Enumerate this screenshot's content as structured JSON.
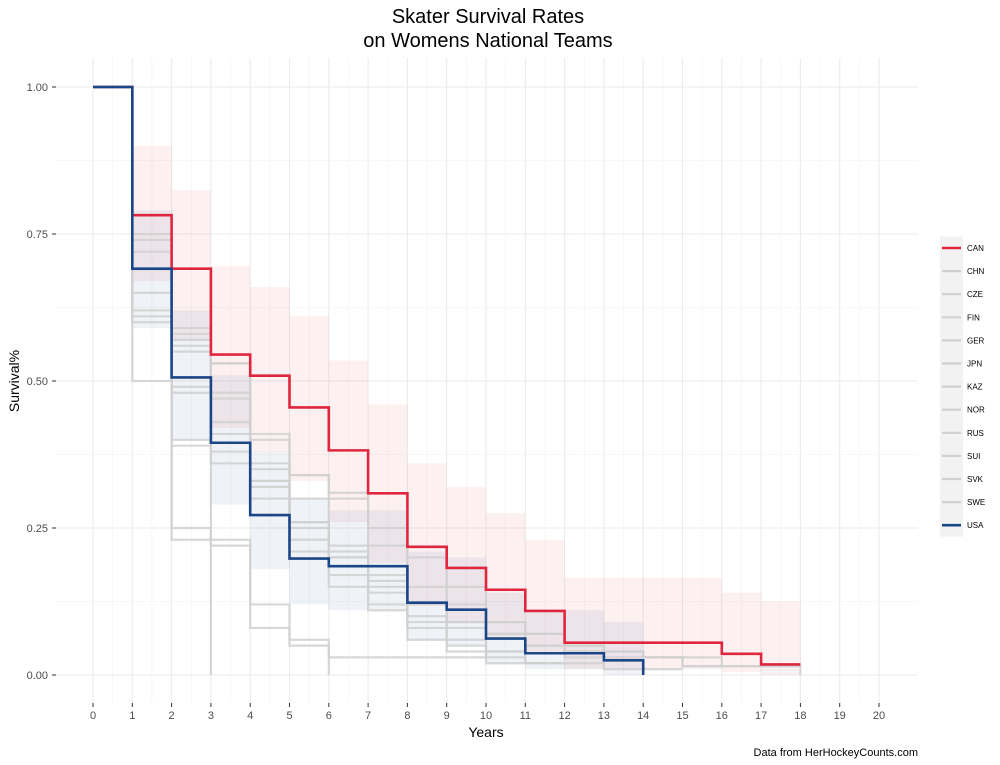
{
  "chart_data": {
    "type": "line",
    "subtype": "step",
    "title_line1": "Skater Survival Rates",
    "title_line2": "on Womens National Teams",
    "xlabel": "Years",
    "ylabel": "Survival%",
    "caption": "Data from HerHockeyCounts.com",
    "xlim": [
      0,
      20
    ],
    "ylim": [
      0,
      1
    ],
    "x_ticks": [
      0,
      1,
      2,
      3,
      4,
      5,
      6,
      7,
      8,
      9,
      10,
      11,
      12,
      13,
      14,
      15,
      16,
      17,
      18,
      19,
      20
    ],
    "y_ticks": [
      0,
      0.25,
      0.5,
      0.75,
      1.0
    ],
    "y_tick_labels": [
      "0.00",
      "0.25",
      "0.50",
      "0.75",
      "1.00"
    ],
    "grid": true,
    "background": "#ffffff",
    "grid_color": "#ebebeb",
    "legend_position": "right",
    "series": [
      {
        "name": "CAN",
        "color": "#e0263f",
        "highlight": true,
        "x": [
          0,
          1,
          2,
          3,
          4,
          5,
          6,
          7,
          8,
          9,
          10,
          11,
          12,
          13,
          14,
          15,
          16,
          17,
          18
        ],
        "y": [
          1.0,
          0.782,
          0.691,
          0.545,
          0.509,
          0.455,
          0.382,
          0.309,
          0.218,
          0.182,
          0.145,
          0.109,
          0.055,
          0.055,
          0.055,
          0.055,
          0.036,
          0.018,
          0.018
        ],
        "lower": [
          1.0,
          0.67,
          0.57,
          0.42,
          0.38,
          0.33,
          0.26,
          0.19,
          0.12,
          0.09,
          0.06,
          0.04,
          0.01,
          0.01,
          0.01,
          0.01,
          0.005,
          0.0,
          0.0
        ],
        "upper": [
          1.0,
          0.9,
          0.825,
          0.695,
          0.66,
          0.61,
          0.535,
          0.46,
          0.36,
          0.32,
          0.275,
          0.23,
          0.165,
          0.165,
          0.165,
          0.165,
          0.14,
          0.125,
          0.125
        ]
      },
      {
        "name": "CHN",
        "color": "#d0d0d0",
        "highlight": false,
        "x": [
          0,
          1,
          2,
          3,
          4,
          5,
          6,
          7,
          8,
          9,
          10
        ],
        "y": [
          1.0,
          0.61,
          0.4,
          0.23,
          0.12,
          0.06,
          0.03,
          0.03,
          0.03,
          0.03,
          0.03
        ]
      },
      {
        "name": "CZE",
        "color": "#d0d0d0",
        "highlight": false,
        "x": [
          0,
          1,
          2,
          3,
          4,
          5,
          6,
          7,
          8,
          9,
          10,
          11,
          12
        ],
        "y": [
          1.0,
          0.62,
          0.48,
          0.38,
          0.33,
          0.26,
          0.2,
          0.14,
          0.09,
          0.06,
          0.04,
          0.02,
          0.02
        ]
      },
      {
        "name": "FIN",
        "color": "#d0d0d0",
        "highlight": false,
        "x": [
          0,
          1,
          2,
          3,
          4,
          5,
          6,
          7,
          8,
          9,
          10,
          11,
          12,
          13,
          14,
          15,
          16,
          17,
          18
        ],
        "y": [
          1.0,
          0.75,
          0.59,
          0.53,
          0.41,
          0.34,
          0.31,
          0.25,
          0.2,
          0.15,
          0.09,
          0.07,
          0.05,
          0.04,
          0.03,
          0.03,
          0.015,
          0.015,
          0.015
        ]
      },
      {
        "name": "GER",
        "color": "#d0d0d0",
        "highlight": false,
        "x": [
          0,
          1,
          2,
          3,
          4,
          5,
          6,
          7,
          8,
          9,
          10,
          11,
          12
        ],
        "y": [
          1.0,
          0.65,
          0.49,
          0.41,
          0.35,
          0.25,
          0.22,
          0.17,
          0.1,
          0.08,
          0.04,
          0.02,
          0.02
        ]
      },
      {
        "name": "JPN",
        "color": "#d0d0d0",
        "highlight": false,
        "x": [
          0,
          1,
          2,
          3,
          4,
          5,
          6
        ],
        "y": [
          1.0,
          0.5,
          0.25,
          0.22,
          0.08,
          0.05,
          0.0
        ]
      },
      {
        "name": "KAZ",
        "color": "#d0d0d0",
        "highlight": false,
        "x": [
          0,
          1,
          2,
          3
        ],
        "y": [
          1.0,
          0.69,
          0.23,
          0.0
        ]
      },
      {
        "name": "NOR",
        "color": "#d0d0d0",
        "highlight": false,
        "x": [
          0,
          1,
          2,
          3,
          4,
          5,
          6,
          7,
          8,
          9,
          10,
          11
        ],
        "y": [
          1.0,
          0.6,
          0.39,
          0.36,
          0.3,
          0.21,
          0.17,
          0.12,
          0.08,
          0.05,
          0.03,
          0.03
        ]
      },
      {
        "name": "RUS",
        "color": "#d0d0d0",
        "highlight": false,
        "x": [
          0,
          1,
          2,
          3,
          4,
          5,
          6,
          7,
          8,
          9,
          10,
          11,
          12,
          13
        ],
        "y": [
          1.0,
          0.69,
          0.55,
          0.47,
          0.36,
          0.3,
          0.21,
          0.15,
          0.12,
          0.09,
          0.07,
          0.05,
          0.03,
          0.03
        ]
      },
      {
        "name": "SUI",
        "color": "#d0d0d0",
        "highlight": false,
        "x": [
          0,
          1,
          2,
          3,
          4,
          5,
          6,
          7,
          8,
          9,
          10,
          11,
          12,
          13,
          14,
          15
        ],
        "y": [
          1.0,
          0.72,
          0.57,
          0.48,
          0.32,
          0.23,
          0.15,
          0.11,
          0.06,
          0.04,
          0.02,
          0.02,
          0.02,
          0.01,
          0.01,
          0.01
        ]
      },
      {
        "name": "SVK",
        "color": "#d0d0d0",
        "highlight": false,
        "x": [
          0,
          1,
          2,
          3,
          4,
          5,
          6,
          7,
          8,
          9,
          10,
          11,
          12,
          13,
          14,
          15,
          16
        ],
        "y": [
          1.0,
          0.69,
          0.56,
          0.43,
          0.33,
          0.26,
          0.2,
          0.16,
          0.12,
          0.09,
          0.07,
          0.05,
          0.04,
          0.03,
          0.03,
          0.015,
          0.015
        ]
      },
      {
        "name": "SWE",
        "color": "#d0d0d0",
        "highlight": false,
        "x": [
          0,
          1,
          2,
          3,
          4,
          5,
          6,
          7,
          8,
          9,
          10,
          11,
          12,
          13,
          14,
          15,
          16,
          17,
          18
        ],
        "y": [
          1.0,
          0.74,
          0.58,
          0.53,
          0.4,
          0.34,
          0.3,
          0.22,
          0.15,
          0.12,
          0.09,
          0.07,
          0.05,
          0.04,
          0.03,
          0.015,
          0.015,
          0.015,
          0.0
        ]
      },
      {
        "name": "USA",
        "color": "#1a4587",
        "highlight": true,
        "x": [
          0,
          1,
          2,
          3,
          4,
          5,
          6,
          7,
          8,
          9,
          10,
          11,
          12,
          13,
          14
        ],
        "y": [
          1.0,
          0.691,
          0.506,
          0.395,
          0.272,
          0.198,
          0.185,
          0.185,
          0.123,
          0.111,
          0.062,
          0.037,
          0.037,
          0.025,
          0.0
        ],
        "lower": [
          1.0,
          0.59,
          0.4,
          0.29,
          0.18,
          0.12,
          0.11,
          0.11,
          0.06,
          0.05,
          0.02,
          0.01,
          0.01,
          0.0,
          0.0
        ],
        "upper": [
          1.0,
          0.79,
          0.62,
          0.51,
          0.38,
          0.3,
          0.28,
          0.28,
          0.21,
          0.2,
          0.14,
          0.11,
          0.11,
          0.09,
          0.0
        ]
      }
    ]
  }
}
